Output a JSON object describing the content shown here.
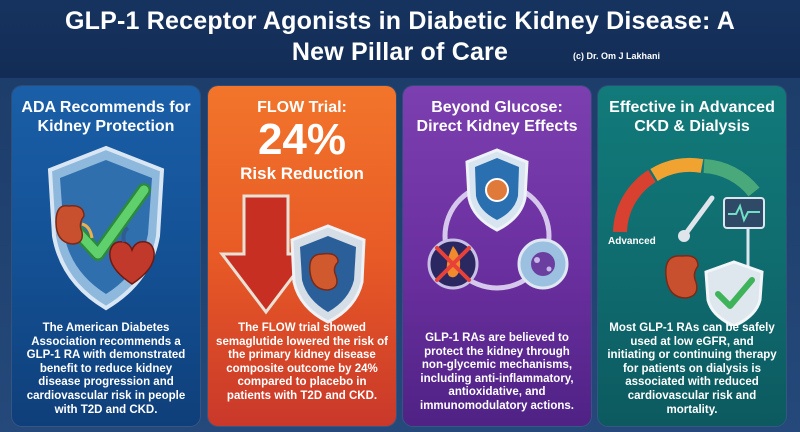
{
  "header": {
    "title": "GLP-1 Receptor Agonists in Diabetic Kidney Disease: A New Pillar of Care",
    "credit": "(c) Dr. Om J Lakhani"
  },
  "cards": [
    {
      "title": "ADA Recommends for Kidney Protection",
      "body": "The American Diabetes Association recommends a GLP-1 RA with demonstrated benefit to reduce kidney disease progression and cardiovascular risk in people with T2D and CKD.",
      "icons": [
        "shield-icon",
        "checkmark-icon",
        "kidney-icon",
        "heart-icon"
      ],
      "accent": "#1a5fa8"
    },
    {
      "title": "FLOW Trial:",
      "percent": "24%",
      "subtitle": "Risk Reduction",
      "body": "The FLOW trial showed semaglutide lowered the risk of the primary kidney disease composite outcome by 24% compared to placebo in patients with T2D and CKD.",
      "icons": [
        "down-arrow-icon",
        "shield-icon",
        "kidney-icon"
      ],
      "accent": "#f2752b"
    },
    {
      "title": "Beyond Glucose: Direct Kidney Effects",
      "body": "GLP-1 RAs are believed to protect the kidney through non-glycemic mechanisms, including anti-inflammatory, antioxidative, and immunomodulatory actions.",
      "icons": [
        "shield-icon",
        "no-inflammation-icon",
        "cell-icon"
      ],
      "accent": "#7c3fb0"
    },
    {
      "title": "Effective in Advanced CKD & Dialysis",
      "body": "Most GLP-1 RAs can be safely used at low eGFR, and initiating or continuing therapy for patients on dialysis is associated with reduced cardiovascular risk and mortality.",
      "gauge_label": "Advanced",
      "icons": [
        "gauge-icon",
        "kidney-icon",
        "dialysis-monitor-icon",
        "shield-check-icon"
      ],
      "accent": "#127a7a"
    }
  ]
}
